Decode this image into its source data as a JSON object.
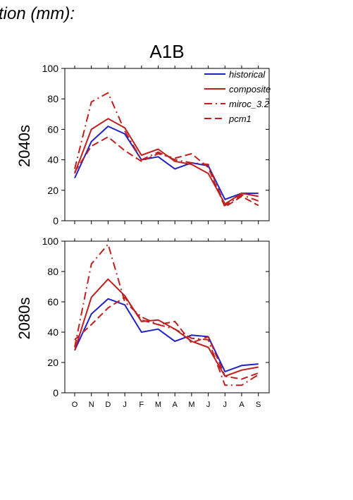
{
  "header_text": "tion (mm):",
  "chart_data": [
    {
      "type": "line",
      "title": "A1B",
      "ylabel": "2040s",
      "xlabel": "",
      "categories": [
        "O",
        "N",
        "D",
        "J",
        "F",
        "M",
        "A",
        "M",
        "J",
        "J",
        "A",
        "S"
      ],
      "ylim": [
        0,
        100
      ],
      "yticks": [
        0,
        20,
        40,
        60,
        80,
        100
      ],
      "legend_position": "top-right",
      "grid": false,
      "series": [
        {
          "name": "historical",
          "color": "#1f22c8",
          "dash": "solid",
          "values": [
            28,
            52,
            62,
            57,
            40,
            42,
            34,
            38,
            36,
            14,
            18,
            18
          ]
        },
        {
          "name": "composite",
          "color": "#c01f1f",
          "dash": "solid",
          "values": [
            31,
            60,
            67,
            61,
            43,
            47,
            39,
            37,
            31,
            11,
            18,
            16
          ]
        },
        {
          "name": "miroc_3.2",
          "color": "#c01f1f",
          "dash": "dashdot",
          "values": [
            34,
            78,
            84,
            59,
            40,
            45,
            40,
            38,
            37,
            10,
            17,
            13
          ]
        },
        {
          "name": "pcm1",
          "color": "#c01f1f",
          "dash": "dash",
          "values": [
            32,
            49,
            55,
            46,
            39,
            44,
            41,
            44,
            35,
            9,
            16,
            10
          ]
        }
      ]
    },
    {
      "type": "line",
      "title": "",
      "ylabel": "2080s",
      "xlabel": "",
      "categories": [
        "O",
        "N",
        "D",
        "J",
        "F",
        "M",
        "A",
        "M",
        "J",
        "J",
        "A",
        "S"
      ],
      "ylim": [
        0,
        100
      ],
      "yticks": [
        0,
        20,
        40,
        60,
        80,
        100
      ],
      "grid": false,
      "series": [
        {
          "name": "historical",
          "color": "#1f22c8",
          "dash": "solid",
          "values": [
            28,
            52,
            62,
            58,
            40,
            42,
            34,
            38,
            37,
            14,
            18,
            19
          ]
        },
        {
          "name": "composite",
          "color": "#c01f1f",
          "dash": "solid",
          "values": [
            28,
            63,
            75,
            64,
            47,
            48,
            42,
            34,
            30,
            11,
            15,
            17
          ]
        },
        {
          "name": "miroc_3.2",
          "color": "#c01f1f",
          "dash": "dashdot",
          "values": [
            30,
            85,
            98,
            60,
            50,
            45,
            42,
            36,
            35,
            5,
            5,
            12
          ]
        },
        {
          "name": "pcm1",
          "color": "#c01f1f",
          "dash": "dash",
          "values": [
            35,
            45,
            56,
            63,
            48,
            45,
            47,
            33,
            37,
            11,
            9,
            13
          ]
        }
      ]
    }
  ]
}
